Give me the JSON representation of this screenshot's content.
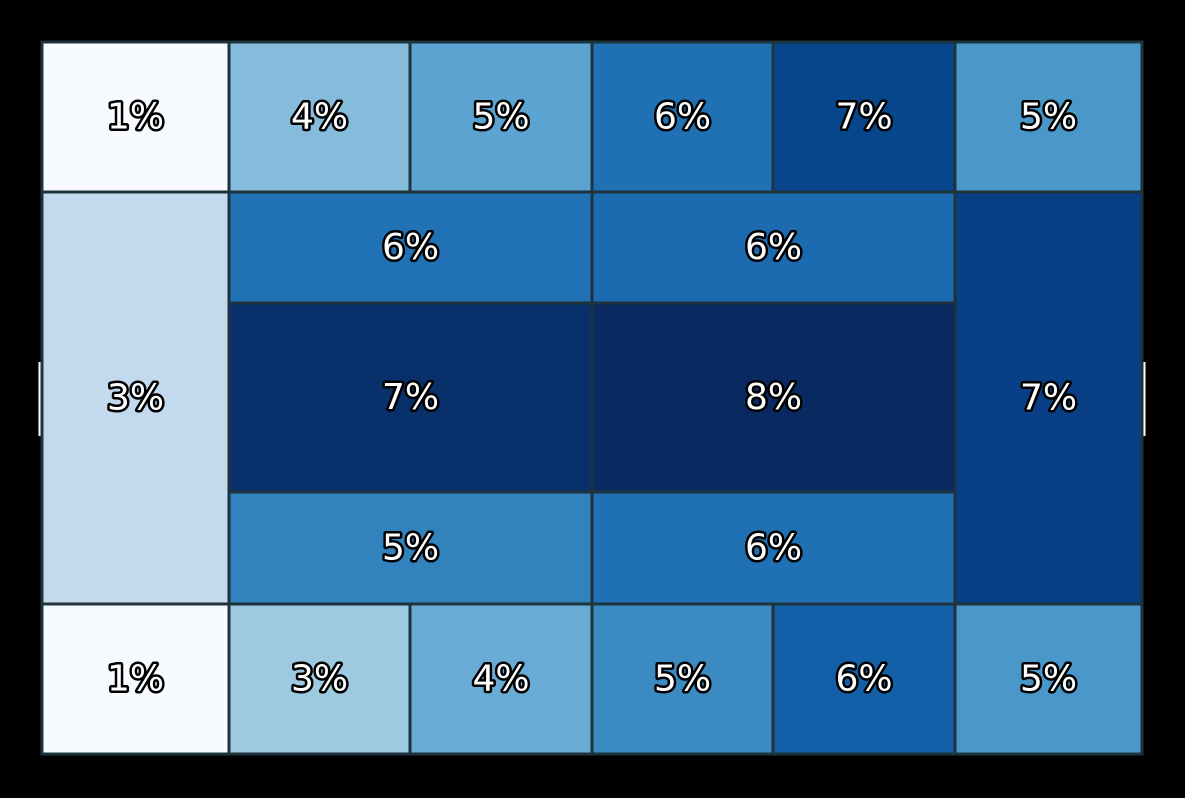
{
  "chart_data": {
    "type": "heatmap",
    "title": "",
    "xlabel": "",
    "ylabel": "",
    "grid": false,
    "legend": "none",
    "colormap": "Blues",
    "value_range": [
      1,
      8
    ],
    "zones": [
      {
        "id": "r1c1",
        "label": "1%",
        "value": 1,
        "color": "#f7fbff"
      },
      {
        "id": "r1c2",
        "label": "4%",
        "value": 4,
        "color": "#85bcdb"
      },
      {
        "id": "r1c3",
        "label": "5%",
        "value": 5,
        "color": "#5ba3d0"
      },
      {
        "id": "r1c4",
        "label": "6%",
        "value": 6,
        "color": "#2070b4"
      },
      {
        "id": "r1c5",
        "label": "7%",
        "value": 7,
        "color": "#08468b"
      },
      {
        "id": "r1c6",
        "label": "5%",
        "value": 5,
        "color": "#4a98c9"
      },
      {
        "id": "left-mid",
        "label": "3%",
        "value": 3,
        "color": "#c2d9ee"
      },
      {
        "id": "c-upper-left",
        "label": "6%",
        "value": 6,
        "color": "#2171b5"
      },
      {
        "id": "c-upper-right",
        "label": "6%",
        "value": 6,
        "color": "#1c6aaf"
      },
      {
        "id": "c-middle-left",
        "label": "7%",
        "value": 7,
        "color": "#08306b"
      },
      {
        "id": "c-middle-right",
        "label": "8%",
        "value": 8,
        "color": "#082a60"
      },
      {
        "id": "c-lower-left",
        "label": "5%",
        "value": 5,
        "color": "#3282be"
      },
      {
        "id": "c-lower-right",
        "label": "6%",
        "value": 6,
        "color": "#2070b4"
      },
      {
        "id": "right-mid",
        "label": "7%",
        "value": 7,
        "color": "#083f85"
      },
      {
        "id": "r5c1",
        "label": "1%",
        "value": 1,
        "color": "#f7fbff"
      },
      {
        "id": "r5c2",
        "label": "3%",
        "value": 3,
        "color": "#9dc9e1"
      },
      {
        "id": "r5c3",
        "label": "4%",
        "value": 4,
        "color": "#68acd5"
      },
      {
        "id": "r5c4",
        "label": "5%",
        "value": 5,
        "color": "#3b8bc2"
      },
      {
        "id": "r5c5",
        "label": "6%",
        "value": 6,
        "color": "#1460a8"
      },
      {
        "id": "r5c6",
        "label": "5%",
        "value": 5,
        "color": "#4a98c9"
      }
    ]
  }
}
